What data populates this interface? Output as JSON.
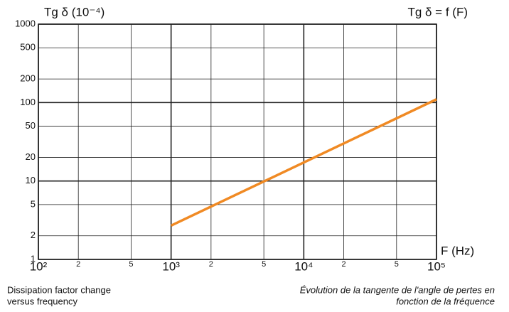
{
  "chart_data": {
    "type": "line",
    "ylabel": "Tg δ (10⁻⁴)",
    "title": "Tg δ = f (F)",
    "xlabel": "F (Hz)",
    "x": [
      1000,
      100000
    ],
    "series": [
      {
        "name": "Tg δ",
        "color": "#f08a24",
        "values": [
          2.7,
          110
        ]
      }
    ],
    "xscale": "log",
    "yscale": "log",
    "xlim": [
      100,
      100000
    ],
    "ylim": [
      1,
      1000
    ],
    "xticks": [
      {
        "value": 100,
        "label": "10²"
      },
      {
        "value": 200,
        "label": "2"
      },
      {
        "value": 500,
        "label": "5"
      },
      {
        "value": 1000,
        "label": "10³"
      },
      {
        "value": 2000,
        "label": "2"
      },
      {
        "value": 5000,
        "label": "5"
      },
      {
        "value": 10000,
        "label": "10⁴"
      },
      {
        "value": 20000,
        "label": "2"
      },
      {
        "value": 50000,
        "label": "5"
      },
      {
        "value": 100000,
        "label": "10⁵"
      }
    ],
    "yticks": [
      1,
      2,
      5,
      10,
      20,
      50,
      100,
      200,
      500,
      1000
    ],
    "grid": true,
    "caption_left": [
      "Dissipation factor change",
      "versus frequency"
    ],
    "caption_right": [
      "Évolution de la tangente de l'angle de pertes en",
      "fonction de la fréquence"
    ]
  }
}
